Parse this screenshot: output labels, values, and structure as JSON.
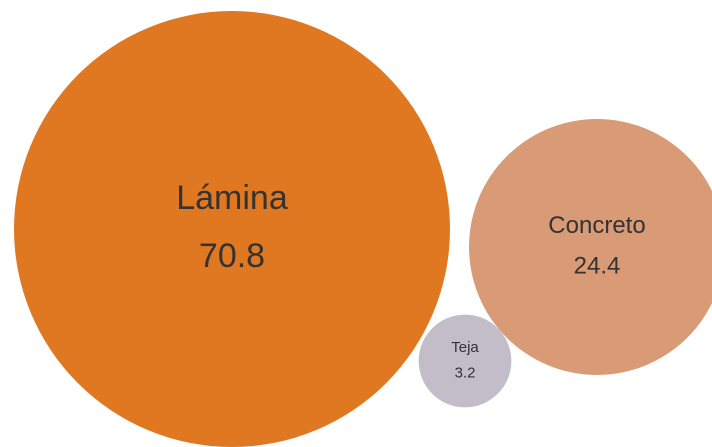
{
  "chart_data": {
    "type": "bubble",
    "categories": [
      "Lámina",
      "Concreto",
      "Teja"
    ],
    "values": [
      70.8,
      24.4,
      3.2
    ],
    "colors": [
      "#e07822",
      "#d99a76",
      "#c3bcc9"
    ]
  }
}
